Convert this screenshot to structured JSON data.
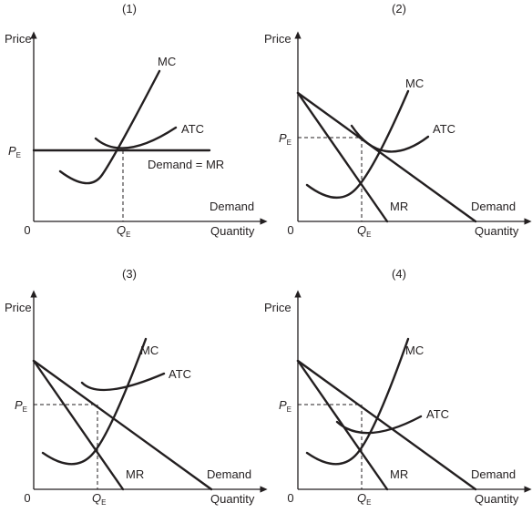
{
  "panels": [
    {
      "number": "(1)",
      "y_axis_label": "Price",
      "x_axis_label": "Quantity",
      "origin_label": "0",
      "price_label": "P",
      "price_sub": "E",
      "quantity_label": "Q",
      "quantity_sub": "E",
      "curves": {
        "mc": "MC",
        "atc": "ATC",
        "demand_mr": "Demand = MR",
        "demand": "Demand"
      }
    },
    {
      "number": "(2)",
      "y_axis_label": "Price",
      "x_axis_label": "Quantity",
      "origin_label": "0",
      "price_label": "P",
      "price_sub": "E",
      "quantity_label": "Q",
      "quantity_sub": "E",
      "curves": {
        "mc": "MC",
        "atc": "ATC",
        "mr": "MR",
        "demand": "Demand"
      }
    },
    {
      "number": "(3)",
      "y_axis_label": "Price",
      "x_axis_label": "Quantity",
      "origin_label": "0",
      "price_label": "P",
      "price_sub": "E",
      "quantity_label": "Q",
      "quantity_sub": "E",
      "curves": {
        "mc": "MC",
        "atc": "ATC",
        "mr": "MR",
        "demand": "Demand"
      }
    },
    {
      "number": "(4)",
      "y_axis_label": "Price",
      "x_axis_label": "Quantity",
      "origin_label": "0",
      "price_label": "P",
      "price_sub": "E",
      "quantity_label": "Q",
      "quantity_sub": "E",
      "curves": {
        "mc": "MC",
        "atc": "ATC",
        "mr": "MR",
        "demand": "Demand"
      }
    }
  ]
}
